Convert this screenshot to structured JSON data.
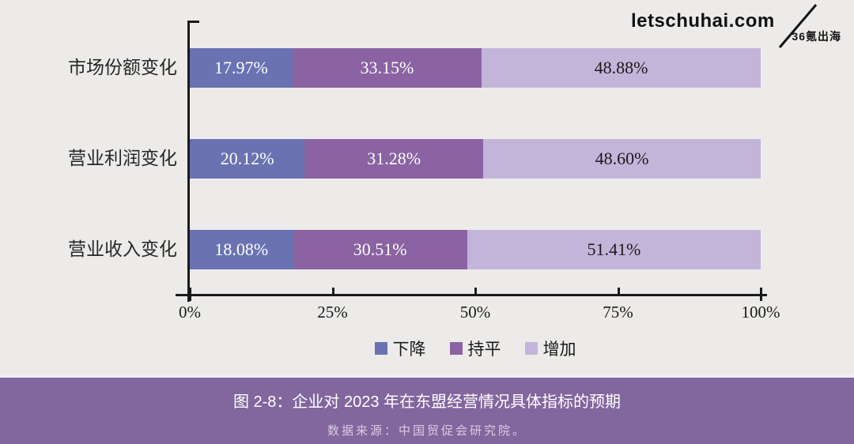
{
  "branding": {
    "site": "letschuhai.com",
    "brand": "36氪出海"
  },
  "chart_data": {
    "type": "bar",
    "orientation": "horizontal-stacked",
    "title": "图 2-8：企业对 2023 年在东盟经营情况具体指标的预期",
    "categories": [
      "市场份额变化",
      "营业利润变化",
      "营业收入变化"
    ],
    "series": [
      {
        "name": "下降",
        "color": "#6A72B2",
        "label_color": "#FFFFFF",
        "values": [
          17.97,
          20.12,
          18.08
        ],
        "labels": [
          "17.97%",
          "20.12%",
          "18.08%"
        ]
      },
      {
        "name": "持平",
        "color": "#8B63A3",
        "label_color": "#FFFFFF",
        "values": [
          33.15,
          31.28,
          30.51
        ],
        "labels": [
          "33.15%",
          "31.28%",
          "30.51%"
        ]
      },
      {
        "name": "增加",
        "color": "#C3B5DA",
        "label_color": "#1A1A1A",
        "values": [
          48.88,
          48.6,
          51.41
        ],
        "labels": [
          "48.88%",
          "48.60%",
          "51.41%"
        ]
      }
    ],
    "x_ticks": [
      {
        "label": "0%",
        "value": 0
      },
      {
        "label": "25%",
        "value": 25
      },
      {
        "label": "50%",
        "value": 50
      },
      {
        "label": "75%",
        "value": 75
      },
      {
        "label": "100%",
        "value": 100
      }
    ],
    "xlim": [
      0,
      100
    ],
    "grid": false,
    "legend_position": "bottom",
    "legend": [
      "下降",
      "持平",
      "增加"
    ]
  },
  "caption": {
    "title": "图 2-8：企业对 2023 年在东盟经营情况具体指标的预期",
    "source": "数据来源：中国贸促会研究院。"
  }
}
